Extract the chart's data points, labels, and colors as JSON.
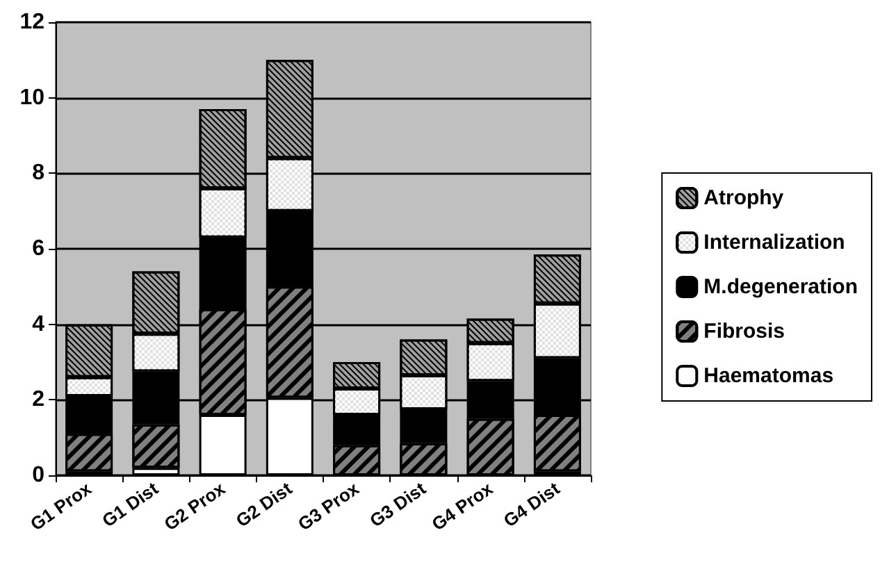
{
  "chart_data": {
    "type": "bar",
    "stacked": true,
    "categories": [
      "G1 Prox",
      "G1 Dist",
      "G2 Prox",
      "G2 Dist",
      "G3 Prox",
      "G3 Dist",
      "G4 Prox",
      "G4 Dist"
    ],
    "series": [
      {
        "name": "Haematomas",
        "color": "#ffffff",
        "values": [
          0.1,
          0.2,
          1.6,
          2.05,
          0,
          0,
          0,
          0.1
        ]
      },
      {
        "name": "Fibrosis",
        "color": "#808080",
        "values": [
          1.0,
          1.15,
          2.8,
          2.95,
          0.8,
          0.85,
          1.5,
          1.5
        ]
      },
      {
        "name": "M.degeneration",
        "color": "#000000",
        "values": [
          1.0,
          1.4,
          1.9,
          2.0,
          0.8,
          0.9,
          1.0,
          1.5
        ]
      },
      {
        "name": "Internalization",
        "color": "#e0e0e0",
        "values": [
          0.5,
          1.0,
          1.3,
          1.4,
          0.7,
          0.9,
          1.0,
          1.45
        ]
      },
      {
        "name": "Atrophy",
        "color": "#a0a0a0",
        "values": [
          1.4,
          1.65,
          2.1,
          2.6,
          0.7,
          0.95,
          0.65,
          1.3
        ]
      }
    ],
    "ylim": [
      0,
      12
    ],
    "yticks": [
      0,
      2,
      4,
      6,
      8,
      10,
      12
    ],
    "grid": "y",
    "legend": "right"
  }
}
